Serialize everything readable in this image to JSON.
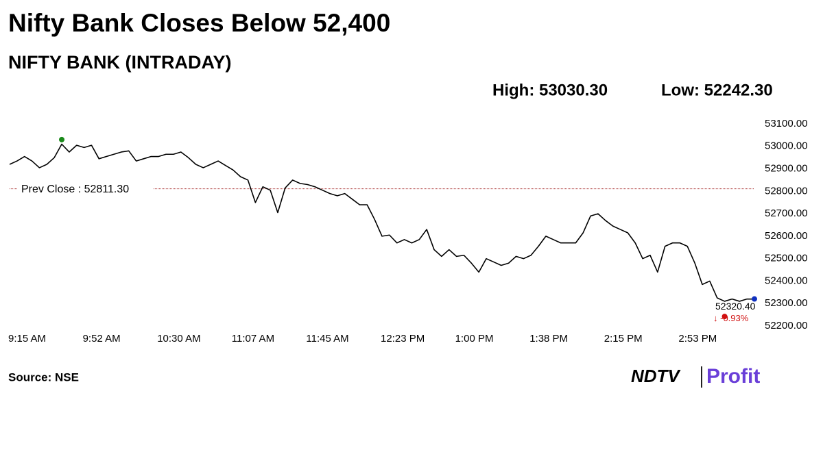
{
  "chart_data": {
    "type": "line",
    "title": "Nifty Bank Closes Below 52,400",
    "subtitle": "NIFTY BANK (INTRADAY)",
    "high": {
      "value": 53030.3,
      "label": "High: 53030.30"
    },
    "low": {
      "value": 52242.3,
      "label": "Low: 52242.30"
    },
    "prev_close": {
      "value": 52811.3,
      "label": "Prev Close : 52811.30"
    },
    "last": {
      "value": 52320.4,
      "label": "52320.40"
    },
    "change": {
      "value": -0.93,
      "label": "↓ -0.93%"
    },
    "color": "#000000",
    "categories": [
      "9:15 AM",
      null,
      null,
      null,
      null,
      null,
      null,
      null,
      null,
      null,
      "9:52 AM",
      null,
      null,
      null,
      null,
      null,
      null,
      null,
      null,
      null,
      "10:30 AM",
      null,
      null,
      null,
      null,
      null,
      null,
      null,
      null,
      null,
      "11:07 AM",
      null,
      null,
      null,
      null,
      null,
      null,
      null,
      null,
      null,
      "11:45 AM",
      null,
      null,
      null,
      null,
      null,
      null,
      null,
      null,
      null,
      "12:23 PM",
      null,
      null,
      null,
      null,
      null,
      null,
      null,
      null,
      null,
      "1:00 PM",
      null,
      null,
      null,
      null,
      null,
      null,
      null,
      null,
      null,
      "1:38 PM",
      null,
      null,
      null,
      null,
      null,
      null,
      null,
      null,
      null,
      "2:15 PM",
      null,
      null,
      null,
      null,
      null,
      null,
      null,
      null,
      null,
      "2:53 PM",
      null,
      null,
      null,
      null,
      null,
      null,
      null,
      null,
      null,
      null
    ],
    "values": [
      52920,
      52935,
      52955,
      52935,
      52905,
      52920,
      52950,
      53010,
      52975,
      53005,
      52995,
      53005,
      52945,
      52955,
      52965,
      52975,
      52980,
      52935,
      52945,
      52955,
      52955,
      52965,
      52965,
      52975,
      52950,
      52920,
      52905,
      52920,
      52935,
      52915,
      52895,
      52865,
      52850,
      52750,
      52820,
      52805,
      52705,
      52815,
      52850,
      52835,
      52830,
      52820,
      52805,
      52790,
      52780,
      52790,
      52765,
      52740,
      52740,
      52675,
      52600,
      52605,
      52570,
      52585,
      52570,
      52585,
      52630,
      52540,
      52510,
      52540,
      52510,
      52515,
      52480,
      52440,
      52500,
      52485,
      52470,
      52480,
      52510,
      52500,
      52515,
      52555,
      52600,
      52585,
      52570,
      52570,
      52570,
      52615,
      52690,
      52700,
      52670,
      52645,
      52630,
      52615,
      52570,
      52500,
      52515,
      52440,
      52555,
      52570,
      52570,
      52555,
      52480,
      52385,
      52400,
      52325,
      52310,
      52320,
      52310,
      52320,
      52320
    ],
    "ylim": [
      52200,
      53100
    ],
    "yticks": [
      {
        "value": 52200,
        "label": "52200.00"
      },
      {
        "value": 52300,
        "label": "52300.00"
      },
      {
        "value": 52400,
        "label": "52400.00"
      },
      {
        "value": 52500,
        "label": "52500.00"
      },
      {
        "value": 52600,
        "label": "52600.00"
      },
      {
        "value": 52700,
        "label": "52700.00"
      },
      {
        "value": 52800,
        "label": "52800.00"
      },
      {
        "value": 52900,
        "label": "52900.00"
      },
      {
        "value": 53000,
        "label": "53000.00"
      },
      {
        "value": 53100,
        "label": "53100.00"
      }
    ],
    "grid": false,
    "source": "Source: NSE",
    "logo": {
      "left": "NDTV",
      "right": "Profit"
    }
  }
}
